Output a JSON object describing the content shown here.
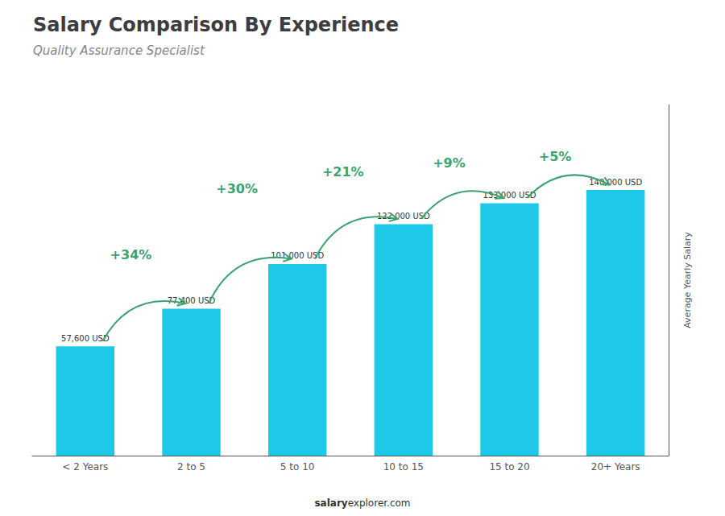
{
  "chart_data": {
    "type": "bar",
    "title": "Salary Comparison By Experience",
    "subtitle": "Quality Assurance Specialist",
    "categories": [
      "< 2 Years",
      "2 to 5",
      "5 to 10",
      "10 to 15",
      "15 to 20",
      "20+ Years"
    ],
    "values": [
      57600,
      77400,
      101000,
      122000,
      133000,
      140000
    ],
    "value_labels": [
      "57,600 USD",
      "77,400 USD",
      "101,000 USD",
      "122,000 USD",
      "133,000 USD",
      "140,000 USD"
    ],
    "data_labels": true,
    "color": "#1ec8e8",
    "ylabel": "Average Yearly Salary",
    "ylim": [
      0,
      185000
    ],
    "yticks": [],
    "tick_labels": "x",
    "grid": false,
    "annotations": [
      "+34%",
      "+30%",
      "+21%",
      "+9%",
      "+5%"
    ],
    "watermark": [
      "salary",
      "explorer.com"
    ]
  }
}
